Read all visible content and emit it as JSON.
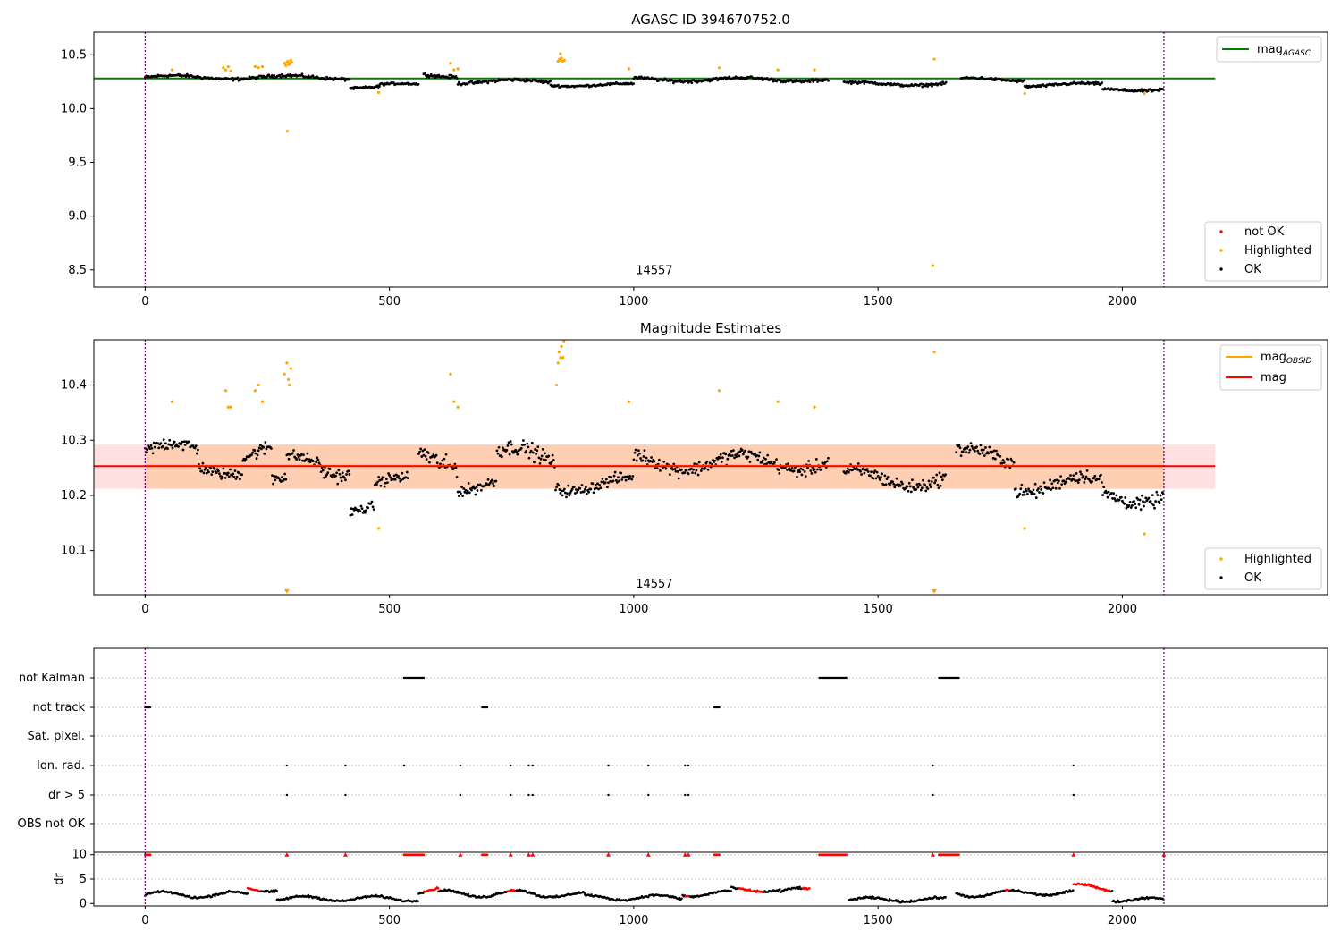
{
  "chart_data": [
    {
      "type": "scatter",
      "title": "AGASC ID 394670752.0",
      "xlim": [
        -105,
        2420
      ],
      "ylim": [
        8.34,
        10.71
      ],
      "x_ticks": [
        0,
        500,
        1000,
        1500,
        2000
      ],
      "y_ticks": [
        8.5,
        9.0,
        9.5,
        10.0,
        10.5
      ],
      "vlines": [
        0,
        2085
      ],
      "hline": {
        "label": "mag",
        "label_sub": "AGASC",
        "value": 10.28,
        "x_range": [
          -105,
          2190
        ],
        "color": "#008000"
      },
      "obsid_label": {
        "text": "14557",
        "x": 1042,
        "y": 8.46
      },
      "legend_lines": [
        {
          "label": "mag",
          "sub": "AGASC",
          "color": "#008000"
        }
      ],
      "legend_points": [
        {
          "label": "not OK",
          "color": "#ff0000"
        },
        {
          "label": "Highlighted",
          "color": "#ffa500"
        },
        {
          "label": "OK",
          "color": "#000000"
        }
      ],
      "series": [
        {
          "name": "OK",
          "color": "#000000",
          "segments": [
            [
              0,
              420,
              10.29,
              0.035
            ],
            [
              420,
              480,
              10.2,
              0.025
            ],
            [
              480,
              560,
              10.22,
              0.025
            ],
            [
              570,
              640,
              10.31,
              0.035
            ],
            [
              640,
              830,
              10.25,
              0.035
            ],
            [
              830,
              1000,
              10.22,
              0.025
            ],
            [
              1000,
              1400,
              10.27,
              0.035
            ],
            [
              1430,
              1640,
              10.23,
              0.03
            ],
            [
              1670,
              1800,
              10.27,
              0.03
            ],
            [
              1800,
              1960,
              10.22,
              0.03
            ],
            [
              1960,
              2085,
              10.18,
              0.03
            ]
          ]
        },
        {
          "name": "Highlighted",
          "color": "#ffa500",
          "points": [
            [
              55,
              10.36
            ],
            [
              160,
              10.38
            ],
            [
              165,
              10.36
            ],
            [
              170,
              10.39
            ],
            [
              175,
              10.35
            ],
            [
              225,
              10.39
            ],
            [
              232,
              10.38
            ],
            [
              240,
              10.39
            ],
            [
              285,
              10.42
            ],
            [
              288,
              10.4
            ],
            [
              290,
              10.43
            ],
            [
              292,
              10.44
            ],
            [
              294,
              10.41
            ],
            [
              296,
              10.42
            ],
            [
              298,
              10.45
            ],
            [
              300,
              10.43
            ],
            [
              291,
              9.79
            ],
            [
              478,
              10.15
            ],
            [
              625,
              10.42
            ],
            [
              632,
              10.36
            ],
            [
              640,
              10.37
            ],
            [
              845,
              10.44
            ],
            [
              848,
              10.46
            ],
            [
              850,
              10.45
            ],
            [
              852,
              10.47
            ],
            [
              855,
              10.44
            ],
            [
              858,
              10.45
            ],
            [
              850,
              10.51
            ],
            [
              990,
              10.37
            ],
            [
              1175,
              10.38
            ],
            [
              1295,
              10.36
            ],
            [
              1370,
              10.36
            ],
            [
              1615,
              10.46
            ],
            [
              1612,
              8.54
            ],
            [
              1800,
              10.14
            ],
            [
              2045,
              10.14
            ]
          ]
        }
      ]
    },
    {
      "type": "scatter",
      "title": "Magnitude Estimates",
      "xlim": [
        -105,
        2420
      ],
      "ylim": [
        10.02,
        10.482
      ],
      "x_ticks": [
        0,
        500,
        1000,
        1500,
        2000
      ],
      "y_ticks": [
        10.1,
        10.2,
        10.3,
        10.4
      ],
      "vlines": [
        0,
        2085
      ],
      "hline": {
        "label": "mag",
        "value": 10.253,
        "x_range": [
          -105,
          2190
        ],
        "color": "#ff0000"
      },
      "band_pink": {
        "range": [
          10.212,
          10.292
        ],
        "x_range": [
          -105,
          2190
        ],
        "color": "#ffcccc"
      },
      "band_orange": {
        "range": [
          10.212,
          10.292
        ],
        "x_range": [
          0,
          2085
        ],
        "color": "#ffc8a0"
      },
      "obsid_label": {
        "text": "14557",
        "x": 1042,
        "y": 10.033
      },
      "legend_lines": [
        {
          "label": "mag",
          "sub": "OBSID",
          "color": "#ffa500"
        },
        {
          "label": "mag",
          "sub": "",
          "color": "#ff0000"
        }
      ],
      "legend_points": [
        {
          "label": "Highlighted",
          "color": "#ffa500"
        },
        {
          "label": "OK",
          "color": "#000000"
        }
      ],
      "series": [
        {
          "name": "OK",
          "color": "#000000",
          "segments": [
            [
              0,
              110,
              10.28,
              0.03
            ],
            [
              110,
              200,
              10.25,
              0.025
            ],
            [
              200,
              260,
              10.28,
              0.03
            ],
            [
              260,
              290,
              10.22,
              0.03
            ],
            [
              290,
              360,
              10.26,
              0.025
            ],
            [
              360,
              420,
              10.25,
              0.03
            ],
            [
              420,
              470,
              10.18,
              0.02
            ],
            [
              470,
              540,
              10.22,
              0.025
            ],
            [
              560,
              640,
              10.27,
              0.04
            ],
            [
              640,
              720,
              10.22,
              0.025
            ],
            [
              720,
              840,
              10.27,
              0.035
            ],
            [
              840,
              1000,
              10.22,
              0.025
            ],
            [
              1000,
              1400,
              10.26,
              0.03
            ],
            [
              1430,
              1640,
              10.23,
              0.03
            ],
            [
              1660,
              1780,
              10.27,
              0.03
            ],
            [
              1780,
              1960,
              10.22,
              0.03
            ],
            [
              1960,
              2085,
              10.2,
              0.03
            ]
          ]
        },
        {
          "name": "Highlighted",
          "color": "#ffa500",
          "points": [
            [
              55,
              10.37
            ],
            [
              165,
              10.39
            ],
            [
              170,
              10.36
            ],
            [
              175,
              10.36
            ],
            [
              225,
              10.39
            ],
            [
              232,
              10.4
            ],
            [
              240,
              10.37
            ],
            [
              285,
              10.42
            ],
            [
              290,
              10.44
            ],
            [
              293,
              10.41
            ],
            [
              295,
              10.4
            ],
            [
              298,
              10.43
            ],
            [
              478,
              10.14
            ],
            [
              625,
              10.42
            ],
            [
              632,
              10.37
            ],
            [
              640,
              10.36
            ],
            [
              845,
              10.44
            ],
            [
              847,
              10.46
            ],
            [
              850,
              10.45
            ],
            [
              852,
              10.47
            ],
            [
              855,
              10.45
            ],
            [
              857,
              10.48
            ],
            [
              842,
              10.4
            ],
            [
              990,
              10.37
            ],
            [
              1175,
              10.39
            ],
            [
              1295,
              10.37
            ],
            [
              1370,
              10.36
            ],
            [
              1615,
              10.46
            ],
            [
              1800,
              10.14
            ],
            [
              2045,
              10.13
            ]
          ]
        }
      ],
      "markers_below": [
        [
          290,
          10.025
        ],
        [
          1615,
          10.025
        ]
      ]
    },
    {
      "type": "scatter",
      "xlim": [
        -105,
        2420
      ],
      "x_ticks": [
        0,
        500,
        1000,
        1500,
        2000
      ],
      "vlines": [
        0,
        2085
      ],
      "flag_rows": [
        {
          "label": "not Kalman",
          "ranges": [
            [
              530,
              570
            ],
            [
              1380,
              1435
            ],
            [
              1625,
              1665
            ]
          ]
        },
        {
          "label": "not track",
          "ranges": [
            [
              0,
              12
            ],
            [
              690,
              700
            ],
            [
              1165,
              1175
            ]
          ]
        },
        {
          "label": "Sat. pixel.",
          "ranges": []
        },
        {
          "label": "Ion. rad.",
          "points": [
            290,
            410,
            530,
            645,
            748,
            785,
            793,
            948,
            1030,
            1105,
            1112,
            1612,
            1900
          ]
        },
        {
          "label": "dr > 5",
          "points": [
            290,
            410,
            645,
            748,
            785,
            793,
            948,
            1030,
            1105,
            1112,
            1612,
            1900
          ]
        },
        {
          "label": "OBS not OK",
          "ranges": []
        }
      ],
      "dr_panel": {
        "ylabel": "dr",
        "ylim": [
          -0.5,
          10.5
        ],
        "y_ticks": [
          0,
          5,
          10
        ],
        "segments": [
          [
            0,
            210,
            1.8,
            0.6
          ],
          [
            210,
            270,
            3.0,
            0.6
          ],
          [
            270,
            560,
            1.0,
            0.5
          ],
          [
            560,
            600,
            2.6,
            0.6
          ],
          [
            600,
            800,
            2.0,
            0.7
          ],
          [
            800,
            900,
            1.8,
            0.5
          ],
          [
            900,
            1100,
            1.2,
            0.5
          ],
          [
            1100,
            1200,
            2.0,
            0.6
          ],
          [
            1200,
            1300,
            2.8,
            0.4
          ],
          [
            1300,
            1360,
            2.4,
            0.8
          ],
          [
            1440,
            1640,
            0.8,
            0.4
          ],
          [
            1660,
            1800,
            2.0,
            0.7
          ],
          [
            1800,
            1900,
            2.2,
            0.5
          ],
          [
            1900,
            1980,
            3.2,
            0.8
          ],
          [
            1980,
            2085,
            0.8,
            0.4
          ]
        ],
        "red_ranges": [
          [
            210,
            235
          ],
          [
            570,
            600
          ],
          [
            740,
            760
          ],
          [
            1105,
            1115
          ],
          [
            1215,
            1265
          ],
          [
            1345,
            1360
          ],
          [
            1760,
            1770
          ],
          [
            1900,
            1975
          ]
        ],
        "top_red_ranges": [
          [
            0,
            12
          ],
          [
            530,
            570
          ],
          [
            690,
            700
          ],
          [
            1165,
            1175
          ],
          [
            1380,
            1435
          ],
          [
            1625,
            1665
          ]
        ],
        "top_red_points": [
          290,
          410,
          645,
          748,
          785,
          793,
          948,
          1030,
          1105,
          1112,
          1612,
          1900,
          2085
        ]
      }
    }
  ]
}
